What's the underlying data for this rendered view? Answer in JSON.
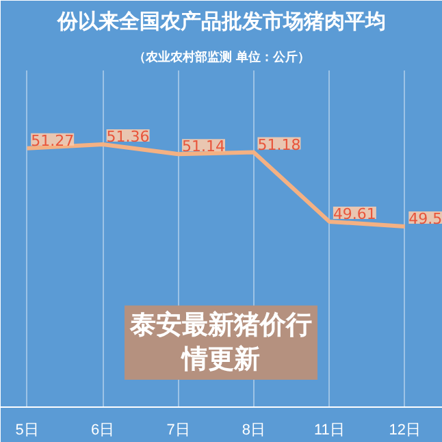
{
  "chart_data": {
    "type": "line",
    "title": "份以来全国农产品批发市场猪肉平均",
    "subtitle": "（农业农村部监测 单位：公斤）",
    "categories": [
      "5日",
      "6日",
      "7日",
      "8日",
      "11日",
      "12日"
    ],
    "series": [
      {
        "color": "#f4b183",
        "values": [
          51.27,
          51.36,
          51.14,
          51.18,
          49.61,
          49.5
        ]
      }
    ],
    "data_labels": true,
    "annotations": [
      "泰安最新猪价行情更新"
    ],
    "grid": "x",
    "marker": "none",
    "line_style": "solid",
    "tick_labels": "x"
  }
}
